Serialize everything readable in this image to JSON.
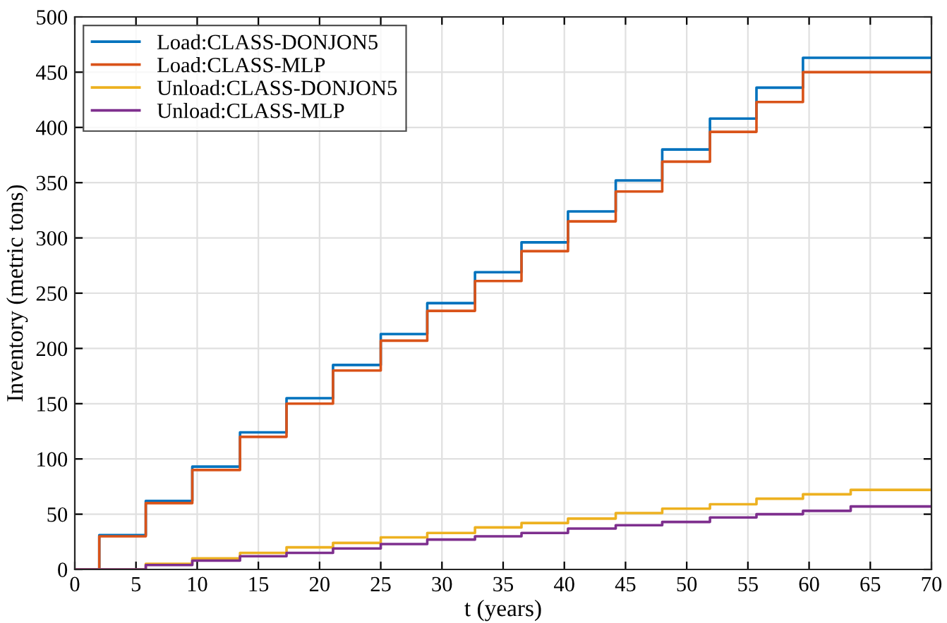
{
  "chart_data": {
    "type": "step",
    "xlabel": "t (years)",
    "ylabel": "Inventory (metric tons)",
    "xlim": [
      0,
      70
    ],
    "xticks": [
      0,
      5,
      10,
      15,
      20,
      25,
      30,
      35,
      40,
      45,
      50,
      55,
      60,
      65,
      70
    ],
    "ylim": [
      0,
      500
    ],
    "yticks": [
      0,
      50,
      100,
      150,
      200,
      250,
      300,
      350,
      400,
      450,
      500
    ],
    "grid": true,
    "legend": "top left",
    "series": [
      {
        "name": "Load:CLASS-DONJON5",
        "color": "#0072bd",
        "x": [
          0,
          2,
          5.8,
          9.6,
          13.5,
          17.3,
          21.1,
          25,
          28.8,
          32.7,
          36.5,
          40.3,
          44.2,
          48,
          51.9,
          55.7,
          59.5,
          70
        ],
        "values": [
          0,
          31,
          62,
          93,
          124,
          155,
          185,
          213,
          241,
          269,
          296,
          324,
          352,
          380,
          408,
          436,
          463,
          463
        ]
      },
      {
        "name": "Load:CLASS-MLP",
        "color": "#d95319",
        "x": [
          0,
          2,
          5.8,
          9.6,
          13.5,
          17.3,
          21.1,
          25,
          28.8,
          32.7,
          36.5,
          40.3,
          44.2,
          48,
          51.9,
          55.7,
          59.5,
          70
        ],
        "values": [
          0,
          30,
          60,
          90,
          120,
          150,
          180,
          207,
          234,
          261,
          288,
          315,
          342,
          369,
          396,
          423,
          450,
          450
        ]
      },
      {
        "name": "Unload:CLASS-DONJON5",
        "color": "#edb120",
        "x": [
          0,
          5.8,
          9.6,
          13.5,
          17.3,
          21.1,
          25,
          28.8,
          32.7,
          36.5,
          40.3,
          44.2,
          48,
          51.9,
          55.7,
          59.5,
          63.4,
          70
        ],
        "values": [
          0,
          5,
          10,
          15,
          20,
          24,
          29,
          33,
          38,
          42,
          46,
          51,
          55,
          59,
          64,
          68,
          72,
          72
        ]
      },
      {
        "name": "Unload:CLASS-MLP",
        "color": "#7e2f8e",
        "x": [
          0,
          5.8,
          9.6,
          13.5,
          17.3,
          21.1,
          25,
          28.8,
          32.7,
          36.5,
          40.3,
          44.2,
          48,
          51.9,
          55.7,
          59.5,
          63.4,
          70
        ],
        "values": [
          0,
          4,
          8,
          12,
          15,
          19,
          23,
          27,
          30,
          33,
          37,
          40,
          43,
          47,
          50,
          53,
          57,
          57
        ]
      }
    ]
  }
}
